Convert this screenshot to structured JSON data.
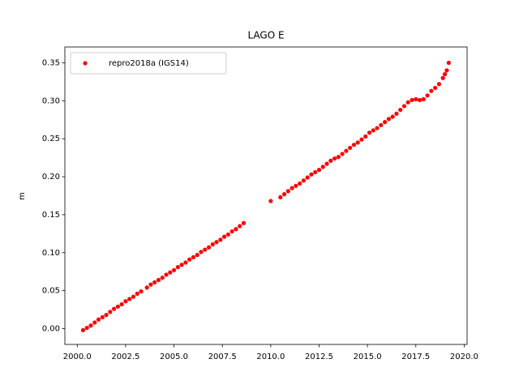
{
  "chart_data": {
    "type": "scatter",
    "title": "LAGO E",
    "y_label": "m",
    "x": [
      2000.3,
      2000.5,
      2000.7,
      2000.9,
      2001.1,
      2001.3,
      2001.5,
      2001.7,
      2001.9,
      2002.1,
      2002.3,
      2002.5,
      2002.7,
      2002.9,
      2003.1,
      2003.3,
      2003.6,
      2003.8,
      2004.0,
      2004.2,
      2004.4,
      2004.6,
      2004.8,
      2005.0,
      2005.2,
      2005.4,
      2005.6,
      2005.8,
      2006.0,
      2006.2,
      2006.4,
      2006.6,
      2006.8,
      2007.0,
      2007.2,
      2007.4,
      2007.6,
      2007.8,
      2008.0,
      2008.2,
      2008.4,
      2008.6,
      2010.0,
      2010.5,
      2010.7,
      2010.9,
      2011.1,
      2011.3,
      2011.5,
      2011.7,
      2011.9,
      2012.1,
      2012.3,
      2012.5,
      2012.7,
      2012.9,
      2013.1,
      2013.3,
      2013.5,
      2013.7,
      2013.9,
      2014.1,
      2014.3,
      2014.5,
      2014.7,
      2014.9,
      2015.1,
      2015.3,
      2015.5,
      2015.7,
      2015.9,
      2016.1,
      2016.3,
      2016.5,
      2016.7,
      2016.9,
      2017.1,
      2017.3,
      2017.5,
      2017.7,
      2017.9,
      2018.1,
      2018.3,
      2018.5,
      2018.7,
      2018.9,
      2019.0,
      2019.1,
      2019.2
    ],
    "series": [
      {
        "name": "repro2018a (IGS14)",
        "color": "#ff0000",
        "values": [
          -0.002,
          0.001,
          0.004,
          0.008,
          0.012,
          0.015,
          0.018,
          0.022,
          0.026,
          0.029,
          0.032,
          0.036,
          0.039,
          0.042,
          0.046,
          0.049,
          0.054,
          0.058,
          0.061,
          0.064,
          0.067,
          0.071,
          0.074,
          0.077,
          0.081,
          0.084,
          0.087,
          0.091,
          0.094,
          0.097,
          0.101,
          0.104,
          0.107,
          0.111,
          0.114,
          0.117,
          0.121,
          0.124,
          0.128,
          0.131,
          0.135,
          0.139,
          0.168,
          0.173,
          0.177,
          0.181,
          0.185,
          0.188,
          0.191,
          0.195,
          0.199,
          0.203,
          0.206,
          0.209,
          0.213,
          0.217,
          0.221,
          0.224,
          0.226,
          0.23,
          0.234,
          0.238,
          0.242,
          0.245,
          0.249,
          0.253,
          0.258,
          0.261,
          0.264,
          0.268,
          0.272,
          0.276,
          0.279,
          0.283,
          0.288,
          0.293,
          0.298,
          0.301,
          0.302,
          0.301,
          0.302,
          0.307,
          0.313,
          0.317,
          0.322,
          0.33,
          0.335,
          0.34,
          0.35
        ]
      }
    ],
    "xlim": [
      1999.36,
      2020.15
    ],
    "xticks": [
      {
        "value": 2000,
        "label": "2000.0"
      },
      {
        "value": 2002.5,
        "label": "2002.5"
      },
      {
        "value": 2005,
        "label": "2005.0"
      },
      {
        "value": 2007.5,
        "label": "2007.5"
      },
      {
        "value": 2010,
        "label": "2010.0"
      },
      {
        "value": 2012.5,
        "label": "2012.5"
      },
      {
        "value": 2015,
        "label": "2015.0"
      },
      {
        "value": 2017.5,
        "label": "2017.5"
      },
      {
        "value": 2020,
        "label": "2020.0"
      }
    ],
    "ylim": [
      -0.0208,
      0.3708
    ],
    "yticks": [
      {
        "value": 0,
        "label": "0.00"
      },
      {
        "value": 0.05,
        "label": "0.05"
      },
      {
        "value": 0.1,
        "label": "0.10"
      },
      {
        "value": 0.15,
        "label": "0.15"
      },
      {
        "value": 0.2,
        "label": "0.20"
      },
      {
        "value": 0.25,
        "label": "0.25"
      },
      {
        "value": 0.3,
        "label": "0.30"
      },
      {
        "value": 0.35,
        "label": "0.35"
      }
    ],
    "grid": false,
    "legend": "upper left"
  }
}
